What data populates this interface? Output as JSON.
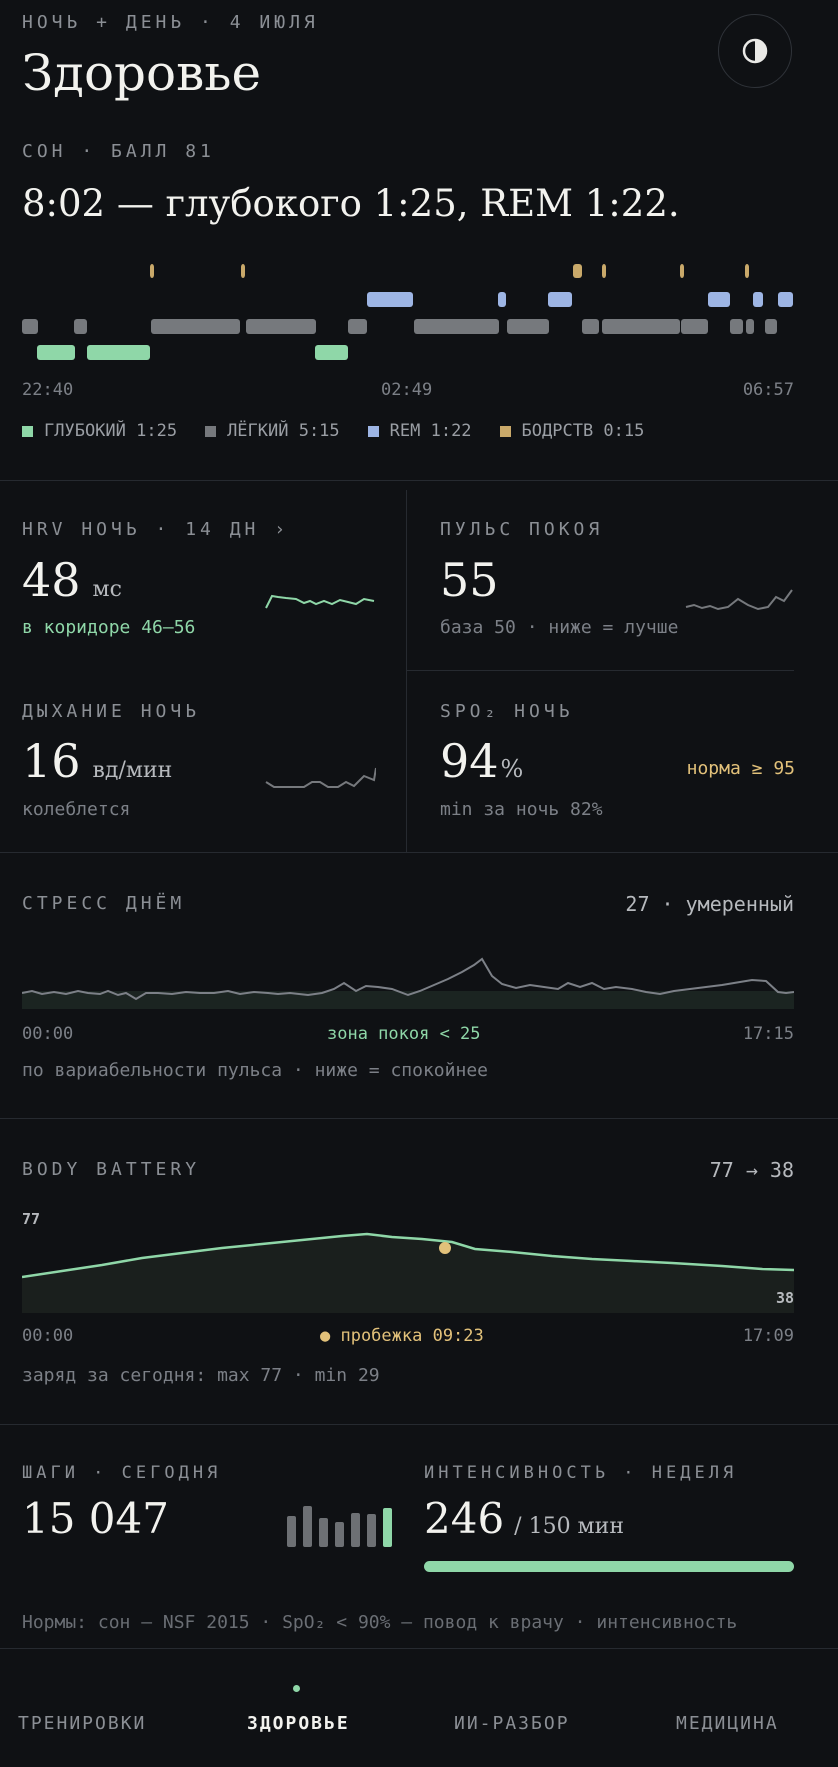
{
  "header": {
    "kicker": "НОЧЬ + ДЕНЬ · 4 ИЮЛЯ",
    "title": "Здоровье",
    "theme_icon": "contrast-icon"
  },
  "sleep": {
    "kicker": "СОН · БАЛЛ 81",
    "summary": "8:02 — глубокого 1:25, REM 1:22.",
    "time_start": "22:40",
    "time_mid": "02:49",
    "time_end": "06:57",
    "colors": {
      "deep": "#8fd7a8",
      "light": "#76797d",
      "rem": "#9db5e4",
      "awake": "#c9a96a"
    },
    "legend": [
      {
        "label": "ГЛУБОКИЙ 1:25",
        "color": "#8fd7a8"
      },
      {
        "label": "ЛЁГКИЙ 5:15",
        "color": "#76797d"
      },
      {
        "label": "REM 1:22",
        "color": "#9db5e4"
      },
      {
        "label": "БОДРСТВ 0:15",
        "color": "#c9a96a"
      }
    ]
  },
  "metrics": {
    "hrv": {
      "kicker": "HRV НОЧЬ · 14 ДН ›",
      "value": "48",
      "unit": "мс",
      "note": "в коридоре 46–56"
    },
    "pulse": {
      "kicker": "ПУЛЬС ПОКОЯ",
      "value": "55",
      "note": "база 50 · ниже = лучше"
    },
    "breath": {
      "kicker": "ДЫХАНИЕ НОЧЬ",
      "value": "16",
      "unit": "вд/мин",
      "note": "колеблется"
    },
    "spo2": {
      "kicker": "SPO₂ НОЧЬ",
      "value": "94",
      "unit": "%",
      "badge": "норма ≥ 95",
      "note": "min за ночь 82%"
    }
  },
  "stress": {
    "kicker": "СТРЕСС ДНЁМ",
    "right": "27 · умеренный",
    "t_start": "00:00",
    "zone": "зона покоя < 25",
    "t_end": "17:15",
    "note": "по вариабельности пульса · ниже = спокойнее"
  },
  "battery": {
    "kicker": "BODY BATTERY",
    "right": "77 → 38",
    "max_label": "77",
    "end_label": "38",
    "t_start": "00:00",
    "event": "● пробежка 09:23",
    "t_end": "17:09",
    "note": "заряд за сегодня: max 77 · min 29"
  },
  "steps": {
    "kicker": "ШАГИ · СЕГОДНЯ",
    "value": "15 047"
  },
  "intensity": {
    "kicker": "ИНТЕНСИВНОСТЬ · НЕДЕЛЯ",
    "value": "246",
    "unit": "/ 150 мин",
    "progress": 1.0
  },
  "footnote": "Нормы: сон — NSF 2015 · SpO₂ < 90% — повод к врачу · интенсивность",
  "nav": {
    "items": [
      {
        "label": "ТРЕНИРОВКИ"
      },
      {
        "label": "ЗДОРОВЬЕ"
      },
      {
        "label": "ИИ-РАЗБОР"
      },
      {
        "label": "МЕДИЦИНА"
      }
    ],
    "active_index": 1
  },
  "accent": "#8fd7a8",
  "warn": "#e2c17a"
}
